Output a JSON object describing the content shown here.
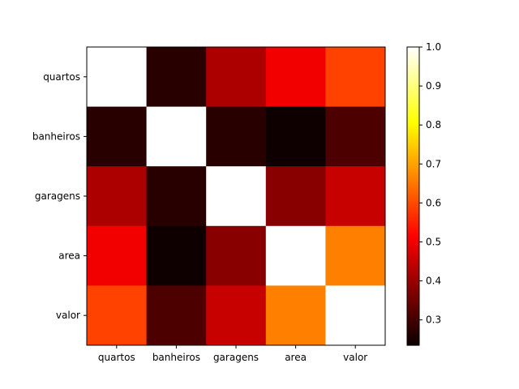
{
  "chart_data": {
    "type": "heatmap",
    "title": "",
    "xlabel": "",
    "ylabel": "",
    "x_categories": [
      "quartos",
      "banheiros",
      "garagens",
      "area",
      "valor"
    ],
    "y_categories": [
      "quartos",
      "banheiros",
      "garagens",
      "area",
      "valor"
    ],
    "values": [
      [
        1.0,
        0.27,
        0.42,
        0.5,
        0.59
      ],
      [
        0.27,
        1.0,
        0.27,
        0.24,
        0.31
      ],
      [
        0.42,
        0.27,
        1.0,
        0.38,
        0.45
      ],
      [
        0.5,
        0.24,
        0.38,
        1.0,
        0.66
      ],
      [
        0.59,
        0.31,
        0.45,
        0.66,
        1.0
      ]
    ],
    "colorscale": "hot",
    "colorbar": {
      "min": 0.235,
      "max": 1.0,
      "ticks": [
        0.3,
        0.4,
        0.5,
        0.6,
        0.7,
        0.8,
        0.9,
        1.0
      ],
      "tick_labels": [
        "0.3",
        "0.4",
        "0.5",
        "0.6",
        "0.7",
        "0.8",
        "0.9",
        "1.0"
      ]
    }
  }
}
